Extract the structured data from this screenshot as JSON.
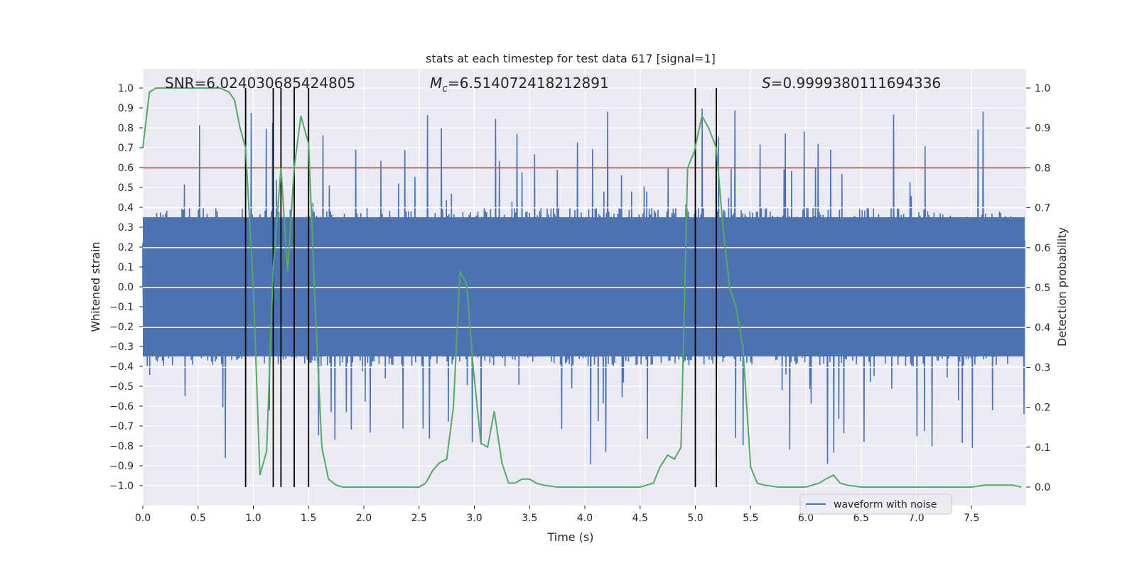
{
  "chart_data": {
    "type": "line",
    "title": "stats at each timestep for test data 617 [signal=1]",
    "xlabel": "Time (s)",
    "ylabel": "Whitened strain",
    "y2label": "Detection probability",
    "xlim": [
      0.0,
      8.0
    ],
    "ylim": [
      -1.05,
      1.1
    ],
    "y2lim": [
      -0.05,
      1.05
    ],
    "xticks": [
      "0.0",
      "0.5",
      "1.0",
      "1.5",
      "2.0",
      "2.5",
      "3.0",
      "3.5",
      "4.0",
      "4.5",
      "5.0",
      "5.5",
      "6.0",
      "6.5",
      "7.0",
      "7.5"
    ],
    "xtick_values": [
      0,
      0.5,
      1,
      1.5,
      2,
      2.5,
      3,
      3.5,
      4,
      4.5,
      5,
      5.5,
      6,
      6.5,
      7,
      7.5
    ],
    "yticks": [
      "1.0",
      "0.9",
      "0.8",
      "0.7",
      "0.6",
      "0.5",
      "0.4",
      "0.3",
      "0.2",
      "0.1",
      "0.0",
      "−0.1",
      "−0.2",
      "−0.3",
      "−0.4",
      "−0.5",
      "−0.6",
      "−0.7",
      "−0.8",
      "−0.9",
      "−1.0"
    ],
    "ytick_values": [
      1.0,
      0.9,
      0.8,
      0.7,
      0.6,
      0.5,
      0.4,
      0.3,
      0.2,
      0.1,
      0.0,
      -0.1,
      -0.2,
      -0.3,
      -0.4,
      -0.5,
      -0.6,
      -0.7,
      -0.8,
      -0.9,
      -1.0
    ],
    "y2ticks": [
      "1.0",
      "0.9",
      "0.8",
      "0.7",
      "0.6",
      "0.5",
      "0.4",
      "0.3",
      "0.2",
      "0.1",
      "0.0"
    ],
    "y2tick_values": [
      1.0,
      0.9,
      0.8,
      0.7,
      0.6,
      0.5,
      0.4,
      0.3,
      0.2,
      0.1,
      0.0
    ],
    "grid": true,
    "annotations": {
      "snr": "SNR=6.024030685424805",
      "mc_symbol": "M",
      "mc_subscript": "c",
      "mc_value": "=6.514072418212891",
      "s_symbol": "S",
      "s_value": "=0.9999380111694336"
    },
    "threshold": 0.8,
    "threshold_color": "#c44e52",
    "waveform_color": "#4c72b0",
    "probability_color": "#55a868",
    "vertical_markers": [
      0.93,
      1.18,
      1.25,
      1.37,
      1.5,
      5.0,
      5.19
    ],
    "waveform_envelope": {
      "core_amplitude": 0.4,
      "peak_max": 1.0,
      "trough_min": -0.95
    },
    "detection_probability": {
      "x": [
        0.0,
        0.06,
        0.12,
        0.2,
        0.4,
        0.6,
        0.7,
        0.78,
        0.83,
        0.88,
        0.93,
        1.0,
        1.06,
        1.12,
        1.18,
        1.25,
        1.31,
        1.37,
        1.43,
        1.5,
        1.56,
        1.62,
        1.68,
        1.75,
        1.81,
        2.0,
        2.25,
        2.5,
        2.56,
        2.62,
        2.68,
        2.75,
        2.81,
        2.87,
        2.93,
        2.99,
        3.06,
        3.12,
        3.18,
        3.25,
        3.31,
        3.37,
        3.43,
        3.5,
        3.56,
        3.62,
        3.75,
        3.87,
        4.0,
        4.25,
        4.5,
        4.62,
        4.68,
        4.75,
        4.81,
        4.87,
        4.93,
        4.99,
        5.06,
        5.12,
        5.19,
        5.25,
        5.31,
        5.37,
        5.43,
        5.5,
        5.56,
        5.62,
        5.75,
        6.0,
        6.12,
        6.18,
        6.25,
        6.31,
        6.37,
        6.5,
        6.75,
        7.0,
        7.25,
        7.5,
        7.62,
        7.75,
        7.87,
        7.95
      ],
      "y": [
        0.85,
        0.99,
        1.0,
        1.0,
        1.0,
        1.0,
        1.0,
        0.99,
        0.97,
        0.9,
        0.85,
        0.5,
        0.03,
        0.09,
        0.55,
        0.8,
        0.54,
        0.8,
        0.93,
        0.86,
        0.45,
        0.1,
        0.02,
        0.005,
        0.0,
        0.0,
        0.0,
        0.0,
        0.01,
        0.04,
        0.06,
        0.07,
        0.2,
        0.54,
        0.51,
        0.3,
        0.11,
        0.1,
        0.19,
        0.06,
        0.01,
        0.01,
        0.02,
        0.02,
        0.01,
        0.005,
        0.0,
        0.0,
        0.0,
        0.0,
        0.0,
        0.01,
        0.05,
        0.08,
        0.07,
        0.1,
        0.8,
        0.84,
        0.93,
        0.9,
        0.85,
        0.65,
        0.5,
        0.45,
        0.35,
        0.05,
        0.01,
        0.005,
        0.0,
        0.0,
        0.01,
        0.02,
        0.03,
        0.01,
        0.005,
        0.0,
        0.0,
        0.0,
        0.0,
        0.0,
        0.005,
        0.005,
        0.005,
        0.0
      ]
    },
    "legend": {
      "placement": "lower-right",
      "entries": [
        "waveform with noise"
      ]
    }
  }
}
